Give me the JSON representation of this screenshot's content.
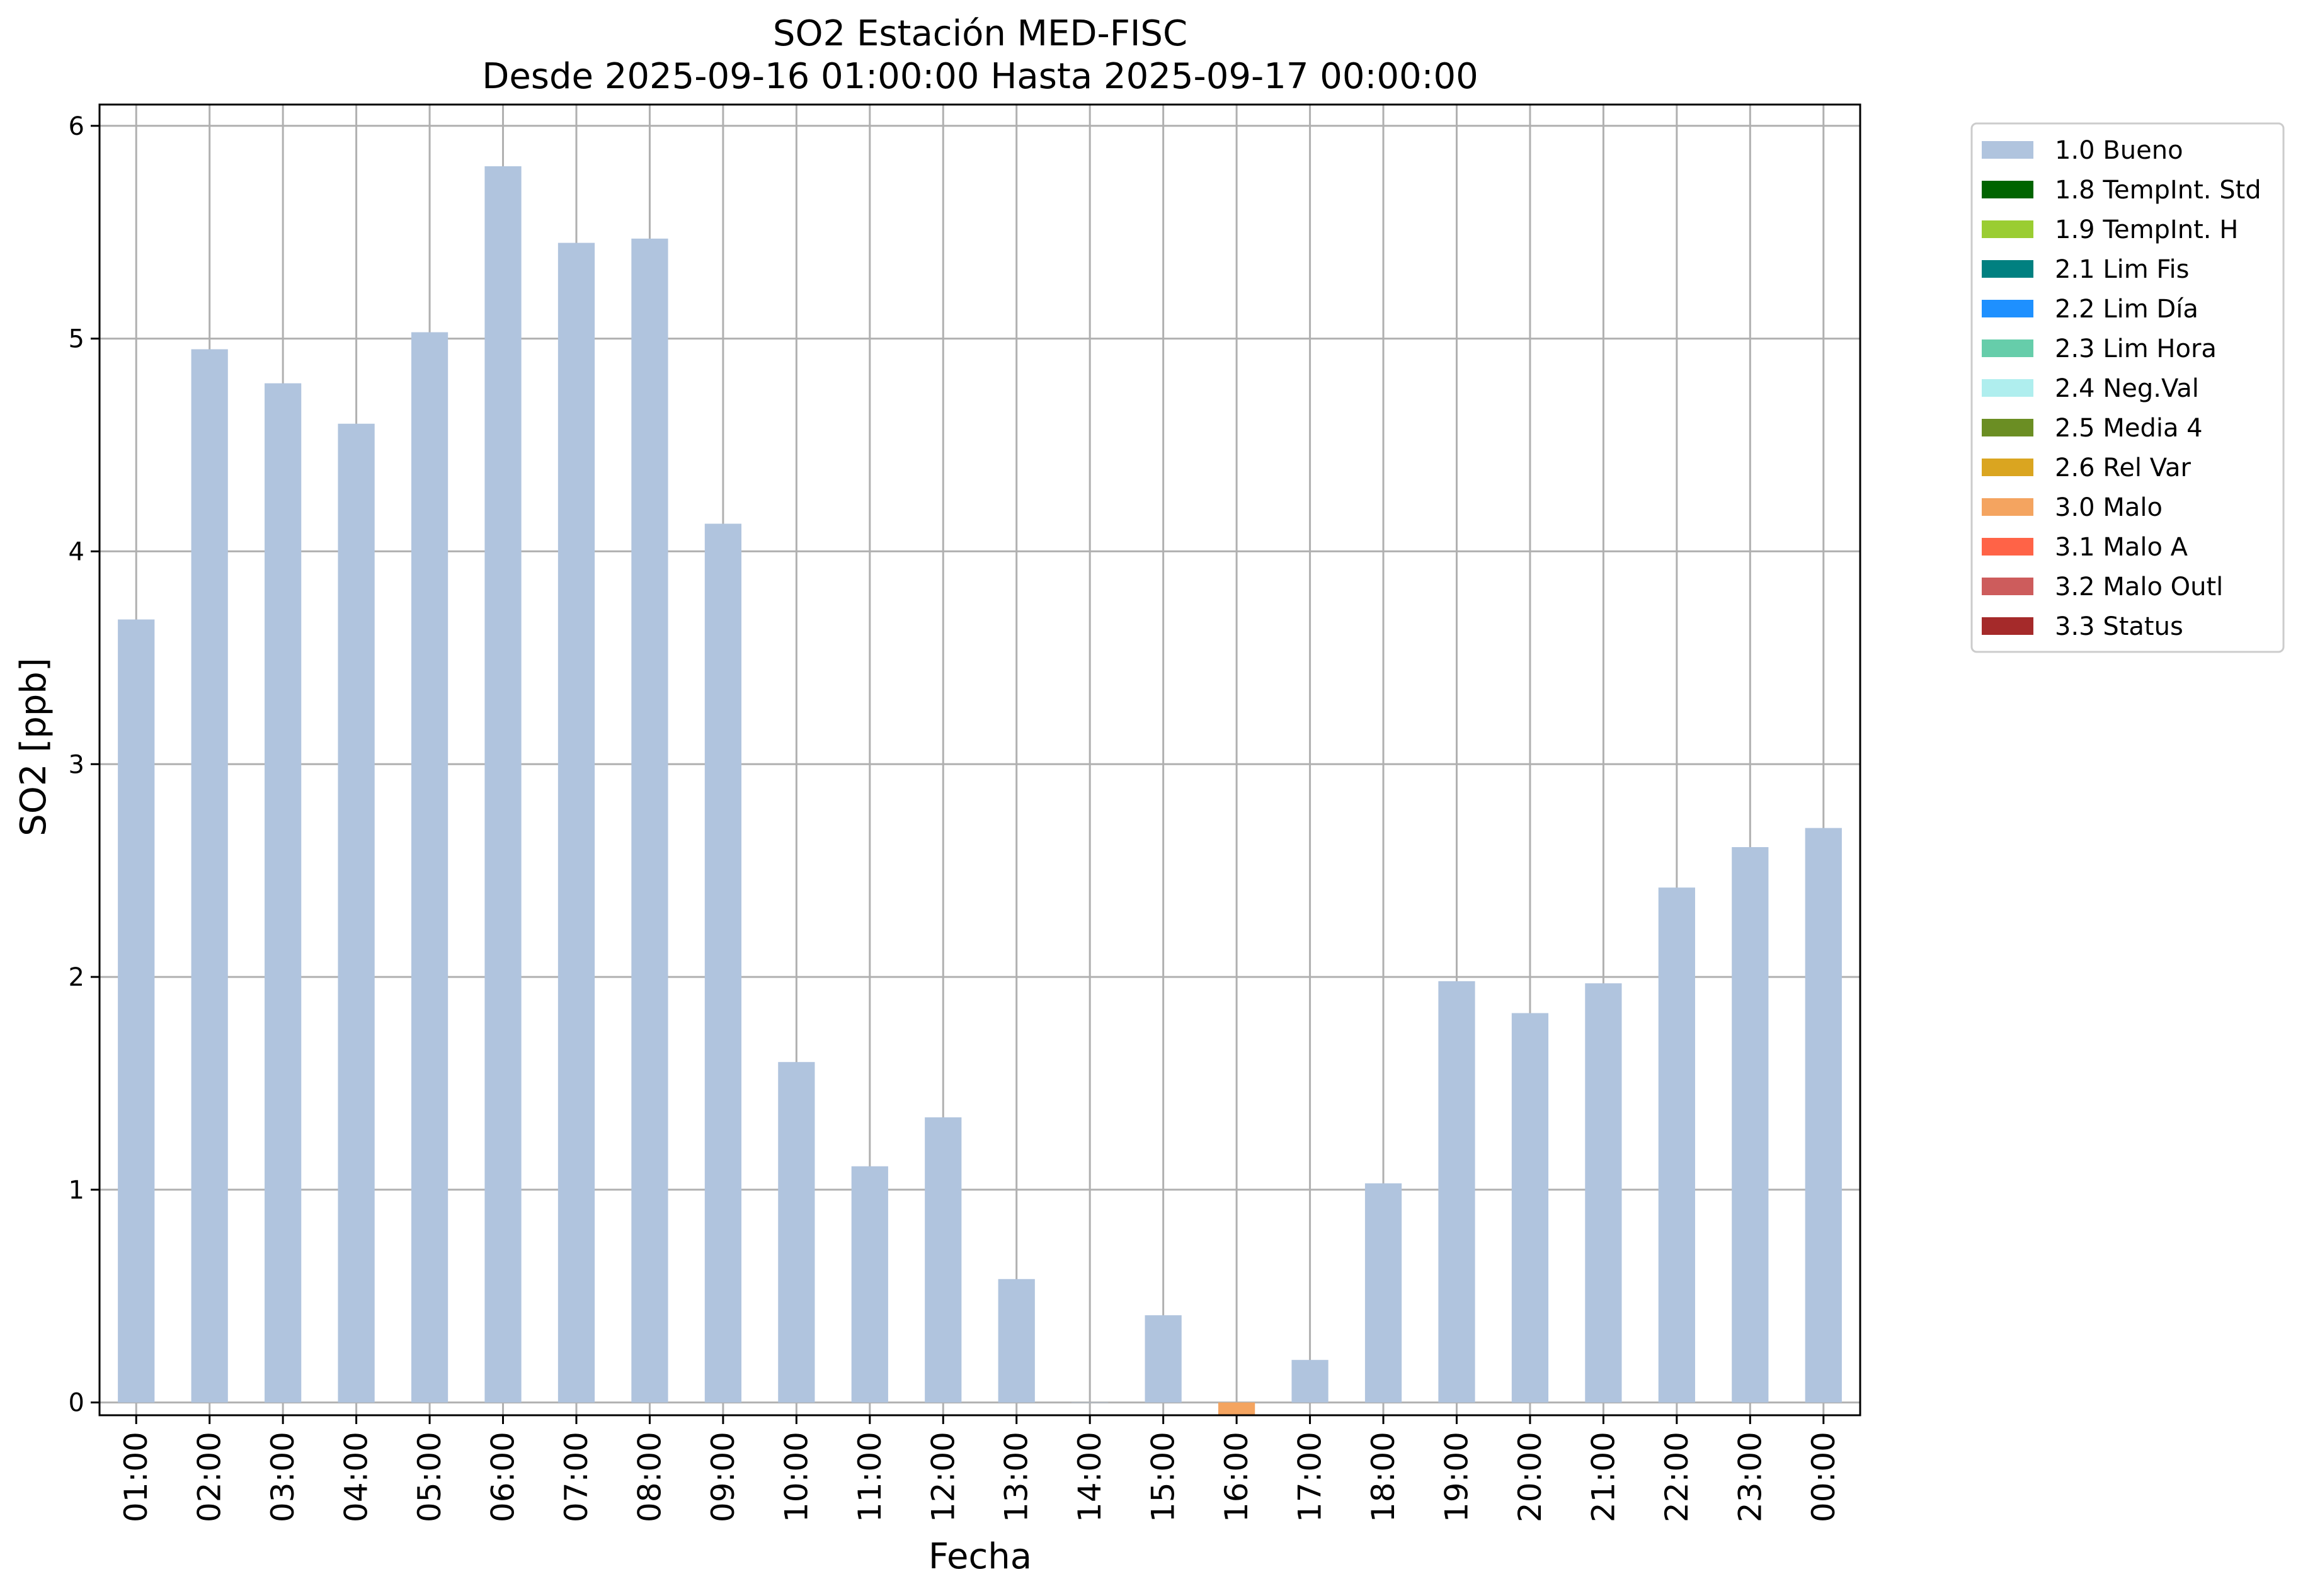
{
  "chart_data": {
    "type": "bar",
    "title": "SO2 Estación MED-FISC",
    "subtitle": "Desde 2025-09-16 01:00:00 Hasta 2025-09-17 00:00:00",
    "xlabel": "Fecha",
    "ylabel": "SO2 [ppb]",
    "ylim": [
      -0.06,
      6.1
    ],
    "yticks": [
      "0",
      "1",
      "2",
      "3",
      "4",
      "5",
      "6"
    ],
    "grid": true,
    "legend_position": "outside-right-top",
    "categories": [
      "01:00",
      "02:00",
      "03:00",
      "04:00",
      "05:00",
      "06:00",
      "07:00",
      "08:00",
      "09:00",
      "10:00",
      "11:00",
      "12:00",
      "13:00",
      "14:00",
      "15:00",
      "16:00",
      "17:00",
      "18:00",
      "19:00",
      "20:00",
      "21:00",
      "22:00",
      "23:00",
      "00:00"
    ],
    "values": [
      3.68,
      4.95,
      4.79,
      4.6,
      5.03,
      5.81,
      5.45,
      5.47,
      4.13,
      1.6,
      1.11,
      1.34,
      0.58,
      0.0,
      0.41,
      -0.06,
      0.2,
      1.03,
      1.98,
      1.83,
      1.97,
      2.42,
      2.61,
      2.7
    ],
    "flags": [
      "1.0 Bueno",
      "1.0 Bueno",
      "1.0 Bueno",
      "1.0 Bueno",
      "1.0 Bueno",
      "1.0 Bueno",
      "1.0 Bueno",
      "1.0 Bueno",
      "1.0 Bueno",
      "1.0 Bueno",
      "1.0 Bueno",
      "1.0 Bueno",
      "1.0 Bueno",
      "1.0 Bueno",
      "1.0 Bueno",
      "3.0 Malo",
      "1.0 Bueno",
      "1.0 Bueno",
      "1.0 Bueno",
      "1.0 Bueno",
      "1.0 Bueno",
      "1.0 Bueno",
      "1.0 Bueno",
      "1.0 Bueno"
    ],
    "legend": [
      {
        "label": "1.0 Bueno",
        "color": "#b0c4de"
      },
      {
        "label": "1.8 TempInt. Std",
        "color": "#006400"
      },
      {
        "label": "1.9 TempInt. H",
        "color": "#9acd32"
      },
      {
        "label": "2.1 Lim Fis",
        "color": "#008080"
      },
      {
        "label": "2.2 Lim Día",
        "color": "#1e90ff"
      },
      {
        "label": "2.3 Lim Hora",
        "color": "#66cdaa"
      },
      {
        "label": "2.4 Neg.Val",
        "color": "#afeeee"
      },
      {
        "label": "2.5 Media 4",
        "color": "#6b8e23"
      },
      {
        "label": "2.6 Rel Var",
        "color": "#daa520"
      },
      {
        "label": "3.0 Malo",
        "color": "#f4a460"
      },
      {
        "label": "3.1 Malo A",
        "color": "#ff6347"
      },
      {
        "label": "3.2 Malo Outl",
        "color": "#cd5c5c"
      },
      {
        "label": "3.3 Status",
        "color": "#a52a2a"
      }
    ]
  }
}
